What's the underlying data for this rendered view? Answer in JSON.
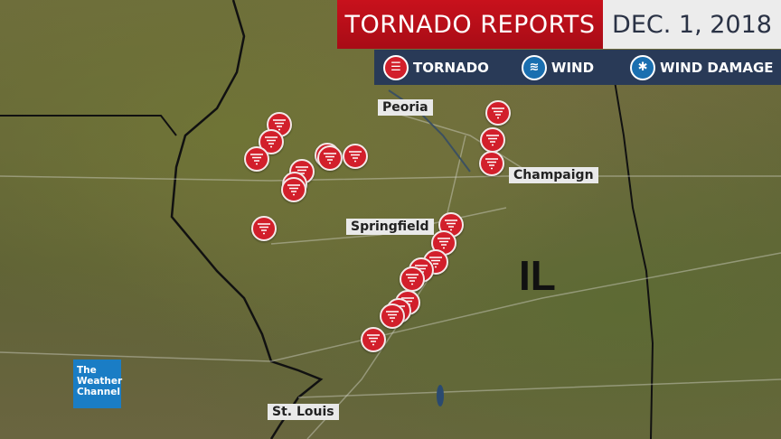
{
  "header": {
    "title": "TORNADO REPORTS",
    "date": "DEC. 1, 2018"
  },
  "legend": {
    "items": [
      {
        "label": "TORNADO",
        "icon": "tornado-icon",
        "color": "#d21f2b"
      },
      {
        "label": "WIND",
        "icon": "wind-icon",
        "color": "#1a6fb0"
      },
      {
        "label": "WIND DAMAGE",
        "icon": "wind-damage-icon",
        "color": "#1a6fb0"
      }
    ]
  },
  "cities": [
    "Peoria",
    "Champaign",
    "Springfield",
    "St. Louis"
  ],
  "state_label": "IL",
  "logo": {
    "lines": [
      "The",
      "Weather",
      "Channel"
    ]
  },
  "tornado_reports_count": 22
}
